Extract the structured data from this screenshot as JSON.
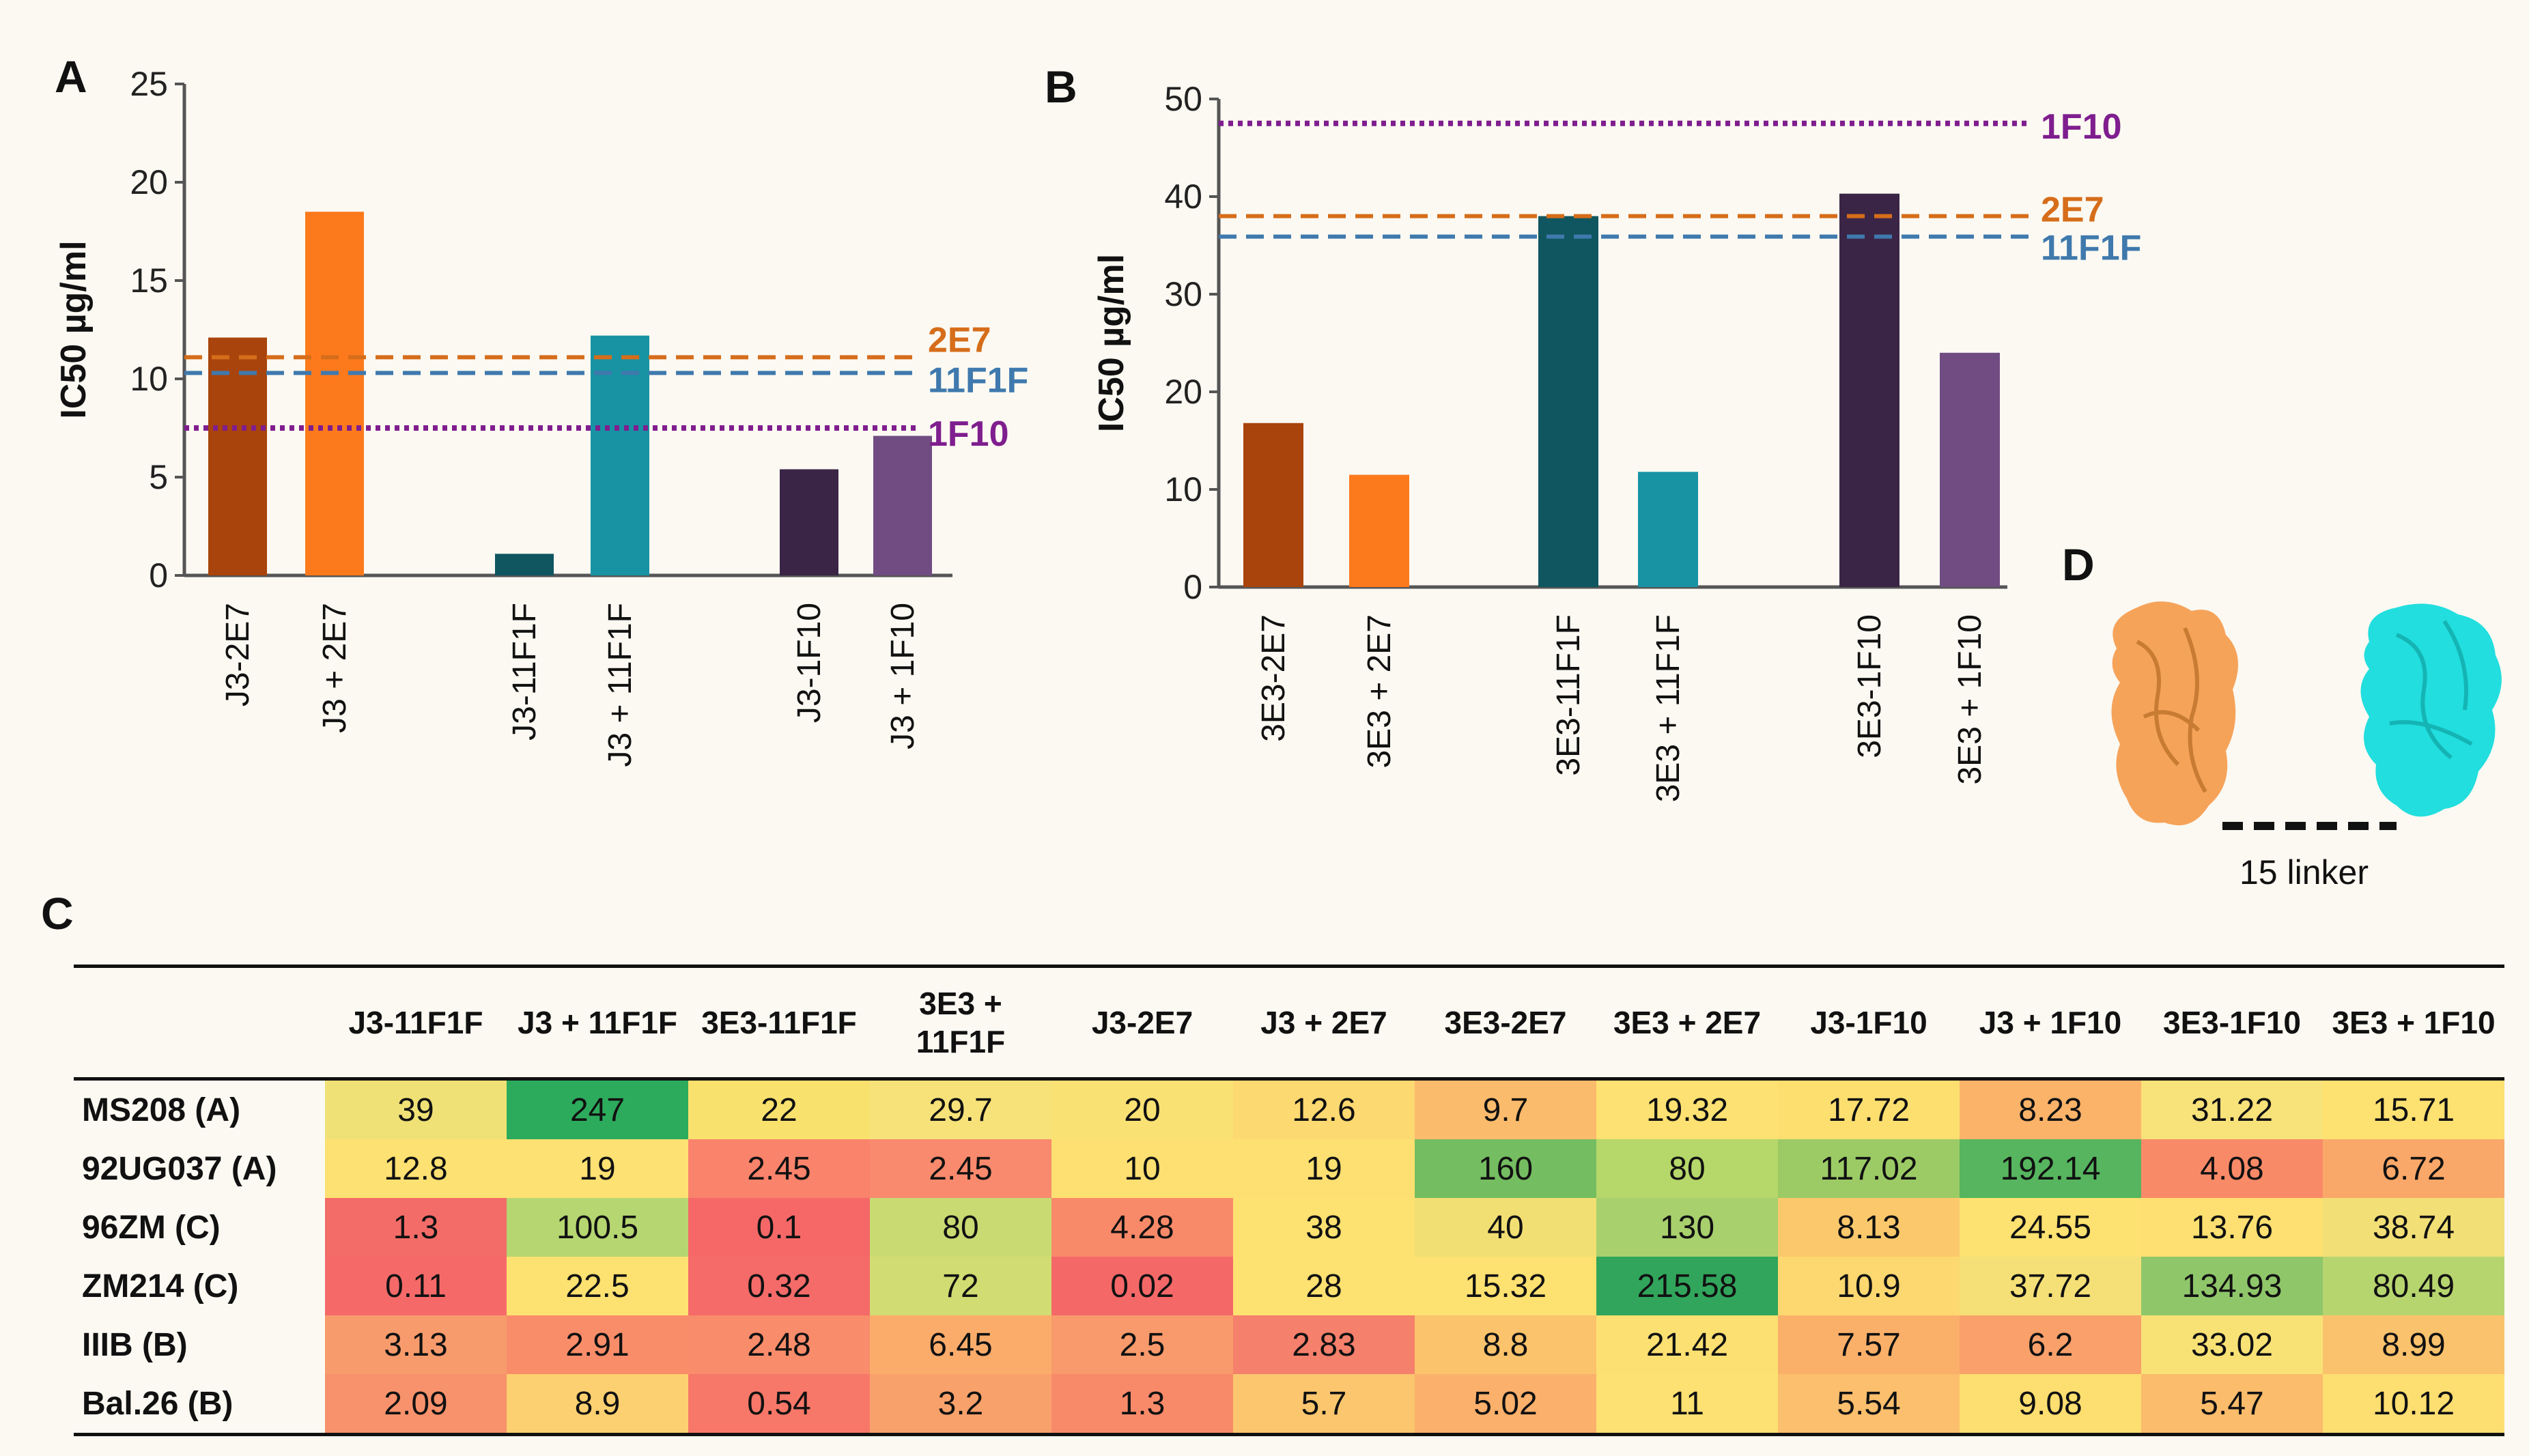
{
  "chart_data": [
    {
      "panel": "A",
      "type": "bar",
      "ylabel": "IC50 µg/ml",
      "ylim": [
        0,
        25
      ],
      "yticks": [
        "0",
        "5",
        "10",
        "15",
        "20",
        "25"
      ],
      "categories": [
        "J3-2E7",
        "J3 + 2E7",
        "J3-11F1F",
        "J3 + 11F1F",
        "J3-1F10",
        "J3 + 1F10"
      ],
      "values": [
        12.1,
        18.5,
        1.1,
        12.2,
        5.4,
        7.1
      ],
      "bar_colors": [
        "#a9440c",
        "#fd7a1c",
        "#0f5660",
        "#1893a3",
        "#3b2546",
        "#704c83"
      ],
      "reference_lines": [
        {
          "label": "2E7",
          "value": 11.1,
          "color": "#d66d1a",
          "style": "dashed"
        },
        {
          "label": "11F1F",
          "value": 10.3,
          "color": "#3f79ad",
          "style": "dashed"
        },
        {
          "label": "1F10",
          "value": 7.5,
          "color": "#7f1e8e",
          "style": "dotted"
        }
      ]
    },
    {
      "panel": "B",
      "type": "bar",
      "ylabel": "IC50 µg/ml",
      "ylim": [
        0,
        50
      ],
      "yticks": [
        "0",
        "10",
        "20",
        "30",
        "40",
        "50"
      ],
      "categories": [
        "3E3-2E7",
        "3E3 + 2E7",
        "3E3-11F1F",
        "3E3 + 11F1F",
        "3E3-1F10",
        "3E3 + 1F10"
      ],
      "values": [
        16.8,
        11.5,
        38.0,
        11.8,
        40.3,
        24.0
      ],
      "bar_colors": [
        "#a9440c",
        "#fd7a1c",
        "#0f5660",
        "#1893a3",
        "#3b2546",
        "#704c83"
      ],
      "reference_lines": [
        {
          "label": "1F10",
          "value": 47.5,
          "color": "#7f1e8e",
          "style": "dotted"
        },
        {
          "label": "2E7",
          "value": 38.0,
          "color": "#d66d1a",
          "style": "dashed"
        },
        {
          "label": "11F1F",
          "value": 35.9,
          "color": "#3f79ad",
          "style": "dashed"
        }
      ]
    },
    {
      "panel": "C",
      "type": "heatmap",
      "columns": [
        "J3-11F1F",
        "J3 + 11F1F",
        "3E3-11F1F",
        "3E3 + 11F1F",
        "J3-2E7",
        "J3 + 2E7",
        "3E3-2E7",
        "3E3 + 2E7",
        "J3-1F10",
        "J3 + 1F10",
        "3E3-1F10",
        "3E3 + 1F10"
      ],
      "rows": [
        {
          "label": "MS208 (A)",
          "values": [
            "39",
            "247",
            "22",
            "29.7",
            "20",
            "12.6",
            "9.7",
            "19.32",
            "17.72",
            "8.23",
            "31.22",
            "15.71"
          ],
          "colors": [
            "#efe176",
            "#2dab5c",
            "#f9e16e",
            "#f7e27a",
            "#fae174",
            "#fdd971",
            "#fbbb6c",
            "#fde172",
            "#fddf70",
            "#fbb36a",
            "#f8e27a",
            "#fde171"
          ]
        },
        {
          "label": "92UG037 (A)",
          "values": [
            "12.8",
            "19",
            "2.45",
            "2.45",
            "10",
            "19",
            "160",
            "80",
            "117.02",
            "192.14",
            "4.08",
            "6.72"
          ],
          "colors": [
            "#fde172",
            "#fde172",
            "#f9836b",
            "#f98a6d",
            "#fde071",
            "#fde071",
            "#75bd61",
            "#b6d76a",
            "#9ccb66",
            "#56b55e",
            "#f98a68",
            "#faa869"
          ]
        },
        {
          "label": "96ZM (C)",
          "values": [
            "1.3",
            "100.5",
            "0.1",
            "80",
            "4.28",
            "38",
            "40",
            "130",
            "8.13",
            "24.55",
            "13.76",
            "38.74"
          ],
          "colors": [
            "#f36c68",
            "#b6d671",
            "#f66868",
            "#c9da72",
            "#f98a69",
            "#fde171",
            "#f2df73",
            "#a8d06d",
            "#fbc86c",
            "#fde171",
            "#fde071",
            "#f2df76"
          ]
        },
        {
          "label": "ZM214 (C)",
          "values": [
            "0.11",
            "22.5",
            "0.32",
            "72",
            "0.02",
            "28",
            "15.32",
            "215.58",
            "10.9",
            "37.72",
            "134.93",
            "80.49"
          ],
          "colors": [
            "#f56a69",
            "#fde171",
            "#f56b69",
            "#d1dc72",
            "#f56868",
            "#fde171",
            "#fde171",
            "#31a55b",
            "#fdd770",
            "#f5e077",
            "#8fc66a",
            "#b7d56f"
          ]
        },
        {
          "label": "IIIB (B)",
          "values": [
            "3.13",
            "2.91",
            "2.48",
            "6.45",
            "2.5",
            "2.83",
            "8.8",
            "21.42",
            "7.57",
            "6.2",
            "33.02",
            "8.99"
          ],
          "colors": [
            "#f89b6c",
            "#f98d6a",
            "#f98c6b",
            "#fbac6b",
            "#f89a6b",
            "#f5806b",
            "#fbc36c",
            "#fde072",
            "#fbb06a",
            "#f9a06b",
            "#f8e276",
            "#fbc26d"
          ]
        },
        {
          "label": "Bal.26 (B)",
          "values": [
            "2.09",
            "8.9",
            "0.54",
            "3.2",
            "1.3",
            "5.7",
            "5.02",
            "11",
            "5.54",
            "9.08",
            "5.47",
            "10.12"
          ],
          "colors": [
            "#f7926c",
            "#fcd070",
            "#f77868",
            "#f9a16b",
            "#f88a6a",
            "#fbc66e",
            "#fbb06b",
            "#fde172",
            "#fbbf6d",
            "#fdde70",
            "#fbbc6c",
            "#fdde71"
          ]
        }
      ]
    }
  ],
  "panel_labels": {
    "a": "A",
    "b": "B",
    "c": "C",
    "d": "D"
  },
  "panel_d": {
    "linker_label": "15 linker",
    "left_protein_color": "#f6a35a",
    "right_protein_color": "#22dede"
  }
}
